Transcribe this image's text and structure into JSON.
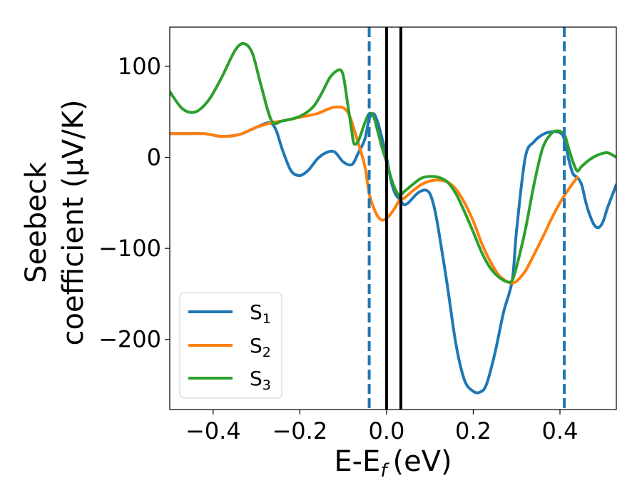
{
  "chart_data": {
    "type": "line",
    "xlabel": "E-E",
    "xlabel_sub": "f",
    "xlabel_unit": "(eV)",
    "ylabel_line1": "Seebeck",
    "ylabel_line2": "coefficient  (μV/K)",
    "xlim": [
      -0.5,
      0.53
    ],
    "ylim": [
      -277,
      143
    ],
    "xticks": [
      -0.4,
      -0.2,
      0.0,
      0.2,
      0.4
    ],
    "xtick_labels": [
      "−0.4",
      "−0.2",
      "0.0",
      "0.2",
      "0.4"
    ],
    "yticks": [
      100,
      0,
      -100,
      -200
    ],
    "ytick_labels": [
      "100",
      "0",
      "−100",
      "−200"
    ],
    "grid": false,
    "legend_position": "lower-left",
    "series": [
      {
        "name": "S",
        "name_sub": "1",
        "color": "#1f77b4",
        "x": [
          -0.5,
          -0.46,
          -0.42,
          -0.38,
          -0.34,
          -0.3,
          -0.27,
          -0.255,
          -0.24,
          -0.22,
          -0.2,
          -0.18,
          -0.16,
          -0.14,
          -0.12,
          -0.1,
          -0.08,
          -0.065,
          -0.05,
          -0.04,
          -0.03,
          -0.02,
          -0.01,
          0.0,
          0.01,
          0.02,
          0.03,
          0.04,
          0.05,
          0.06,
          0.07,
          0.08,
          0.09,
          0.1,
          0.11,
          0.12,
          0.14,
          0.16,
          0.18,
          0.2,
          0.215,
          0.23,
          0.25,
          0.27,
          0.29,
          0.3,
          0.32,
          0.34,
          0.36,
          0.38,
          0.4,
          0.41,
          0.42,
          0.43,
          0.44,
          0.45,
          0.46,
          0.47,
          0.48,
          0.49,
          0.5,
          0.51,
          0.53
        ],
        "y": [
          26,
          26,
          26,
          23,
          25,
          33,
          38,
          30,
          8,
          -15,
          -20,
          -14,
          -2,
          5,
          6,
          -5,
          -8,
          5,
          20,
          42,
          48,
          38,
          20,
          0,
          -25,
          -40,
          -46,
          -52,
          -50,
          -45,
          -40,
          -37,
          -36,
          -40,
          -55,
          -80,
          -140,
          -205,
          -245,
          -257,
          -258,
          -250,
          -215,
          -170,
          -135,
          -80,
          0,
          17,
          25,
          28,
          27,
          20,
          -2,
          -18,
          -22,
          -30,
          -50,
          -65,
          -75,
          -77,
          -70,
          -55,
          -30
        ]
      },
      {
        "name": "S",
        "name_sub": "2",
        "color": "#ff7f0e",
        "x": [
          -0.5,
          -0.46,
          -0.42,
          -0.38,
          -0.34,
          -0.3,
          -0.265,
          -0.24,
          -0.2,
          -0.16,
          -0.12,
          -0.09,
          -0.065,
          -0.05,
          -0.04,
          -0.03,
          -0.02,
          -0.01,
          0.0,
          0.01,
          0.02,
          0.03,
          0.04,
          0.06,
          0.08,
          0.1,
          0.12,
          0.14,
          0.16,
          0.18,
          0.2,
          0.22,
          0.24,
          0.26,
          0.28,
          0.29,
          0.3,
          0.32,
          0.34,
          0.36,
          0.38,
          0.4,
          0.42,
          0.44
        ],
        "y": [
          26,
          26,
          26,
          23,
          25,
          33,
          38,
          40,
          44,
          48,
          55,
          50,
          15,
          -10,
          -40,
          -55,
          -65,
          -69,
          -67,
          -62,
          -55,
          -47,
          -45,
          -37,
          -30,
          -26,
          -25,
          -27,
          -35,
          -50,
          -70,
          -95,
          -115,
          -130,
          -137,
          -138,
          -136,
          -125,
          -107,
          -88,
          -68,
          -50,
          -35,
          -22
        ]
      },
      {
        "name": "S",
        "name_sub": "3",
        "color": "#2ca02c",
        "x": [
          -0.5,
          -0.47,
          -0.44,
          -0.41,
          -0.38,
          -0.35,
          -0.33,
          -0.31,
          -0.29,
          -0.265,
          -0.24,
          -0.2,
          -0.17,
          -0.15,
          -0.13,
          -0.11,
          -0.1,
          -0.09,
          -0.08,
          -0.075,
          -0.065,
          -0.05,
          -0.04,
          -0.03,
          -0.02,
          -0.01,
          0.0,
          0.01,
          0.02,
          0.03,
          0.04,
          0.06,
          0.08,
          0.1,
          0.12,
          0.14,
          0.16,
          0.18,
          0.2,
          0.22,
          0.24,
          0.26,
          0.28,
          0.29,
          0.3,
          0.32,
          0.34,
          0.36,
          0.38,
          0.395,
          0.41,
          0.42,
          0.43,
          0.44,
          0.45,
          0.47,
          0.49,
          0.51,
          0.53
        ],
        "y": [
          72,
          53,
          50,
          63,
          88,
          117,
          125,
          115,
          80,
          40,
          40,
          45,
          55,
          70,
          88,
          96,
          90,
          60,
          28,
          15,
          18,
          38,
          48,
          45,
          28,
          10,
          -5,
          -22,
          -35,
          -42,
          -38,
          -30,
          -23,
          -21,
          -22,
          -27,
          -40,
          -60,
          -82,
          -105,
          -122,
          -132,
          -137,
          -135,
          -120,
          -80,
          -30,
          10,
          26,
          29,
          25,
          10,
          -5,
          -15,
          -10,
          -2,
          3,
          5,
          0
        ]
      }
    ],
    "vlines": [
      {
        "x": -0.04,
        "style": "dashed",
        "color": "#1f77b4"
      },
      {
        "x": 0.0,
        "style": "solid",
        "color": "#000000"
      },
      {
        "x": 0.033,
        "style": "solid",
        "color": "#000000"
      },
      {
        "x": 0.41,
        "style": "dashed",
        "color": "#1f77b4"
      }
    ]
  }
}
